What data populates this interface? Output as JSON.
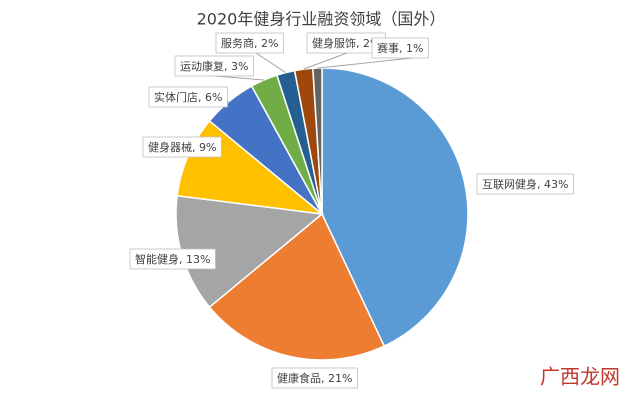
{
  "chart_data": {
    "type": "pie",
    "title": "2020年健身行业融资领域（国外）",
    "values": [
      43,
      21,
      13,
      9,
      6,
      3,
      2,
      2,
      1
    ],
    "value_labels": [
      "互联网健身, 43%",
      "健康食品, 21%",
      "智能健身, 13%",
      "健身器械, 9%",
      "实体门店, 6%",
      "运动康复, 3%",
      "服务商, 2%",
      "健身服饰, 2%",
      "赛事, 1%"
    ],
    "colors": [
      "#5b9bd5",
      "#ed7d31",
      "#a5a5a5",
      "#ffc000",
      "#4472c4",
      "#70ad47",
      "#255e91",
      "#9e480e",
      "#636363"
    ],
    "watermark": "广西龙网"
  }
}
